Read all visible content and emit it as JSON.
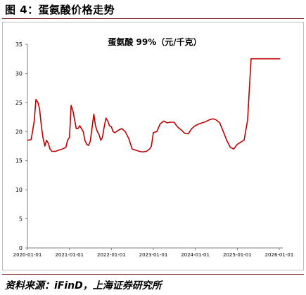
{
  "figure_title": "图 4：蛋氨酸价格走势",
  "source_note": "资料来源：iFinD，上海证券研究所",
  "chart_data": {
    "type": "line",
    "title": "蛋氨酸 99%（元/千克）",
    "xlabel": "",
    "ylabel": "",
    "ylim": [
      0,
      35
    ],
    "yticks": [
      0,
      5,
      10,
      15,
      20,
      25,
      30,
      35
    ],
    "xlim": [
      "2020-01-01",
      "2026-02-01"
    ],
    "xticks": [
      "2020-01-01",
      "2021-01-01",
      "2022-01-01",
      "2023-01-01",
      "2024-01-01",
      "2025-01-01",
      "2026-01-01"
    ],
    "grid": false,
    "legend": "none",
    "line_color": "#c00000",
    "series": [
      {
        "x": [
          "2020-01-01",
          "2020-02-01",
          "2020-02-15",
          "2020-03-01",
          "2020-03-15",
          "2020-04-01",
          "2020-04-15",
          "2020-05-01",
          "2020-05-15",
          "2020-06-01",
          "2020-06-15",
          "2020-07-01",
          "2020-07-15",
          "2020-08-01",
          "2020-09-01",
          "2020-10-01",
          "2020-11-01",
          "2020-12-01",
          "2020-12-15",
          "2021-01-01",
          "2021-01-15",
          "2021-02-01",
          "2021-02-15",
          "2021-03-01",
          "2021-03-15",
          "2021-04-01",
          "2021-04-15",
          "2021-05-01",
          "2021-05-15",
          "2021-06-01",
          "2021-06-15",
          "2021-07-01",
          "2021-08-01",
          "2021-08-15",
          "2021-09-01",
          "2021-09-15",
          "2021-10-01",
          "2021-10-15",
          "2021-11-01",
          "2021-11-15",
          "2021-12-01",
          "2021-12-15",
          "2022-01-01",
          "2022-01-15",
          "2022-02-01",
          "2022-03-01",
          "2022-04-01",
          "2022-05-01",
          "2022-06-01",
          "2022-07-01",
          "2022-08-01",
          "2022-09-01",
          "2022-10-01",
          "2022-11-01",
          "2022-12-01",
          "2022-12-15",
          "2023-01-01",
          "2023-02-01",
          "2023-03-01",
          "2023-04-01",
          "2023-05-01",
          "2023-06-01",
          "2023-07-01",
          "2023-07-15",
          "2023-08-01",
          "2023-08-15",
          "2023-09-01",
          "2023-10-01",
          "2023-11-01",
          "2023-12-01",
          "2024-01-01",
          "2024-02-01",
          "2024-03-01",
          "2024-04-01",
          "2024-05-01",
          "2024-06-01",
          "2024-07-01",
          "2024-08-01",
          "2024-09-01",
          "2024-10-01",
          "2024-11-01",
          "2024-12-01",
          "2025-01-01",
          "2025-02-01",
          "2025-03-01",
          "2025-04-01",
          "2025-05-01",
          "2025-06-01",
          "2025-07-01",
          "2025-08-01",
          "2025-09-01",
          "2025-10-01",
          "2025-11-01",
          "2025-12-01",
          "2025-12-15",
          "2026-01-01",
          "2026-01-05",
          "2026-01-10"
        ],
        "y": [
          18.5,
          18.6,
          20,
          22,
          25.5,
          25,
          24,
          21,
          19,
          17.5,
          18.5,
          18,
          17,
          16.6,
          16.6,
          16.8,
          17,
          17.3,
          18.5,
          19,
          24.5,
          23.5,
          22,
          20.5,
          20.5,
          21,
          20.5,
          20,
          18.5,
          17.8,
          17.6,
          18.3,
          23,
          21,
          20,
          19.5,
          18.5,
          19,
          21,
          22.3,
          21.8,
          21,
          20.8,
          20,
          19.8,
          20.2,
          20.5,
          20,
          18.8,
          17,
          16.8,
          16.6,
          16.5,
          16.6,
          17,
          17.5,
          19.8,
          20,
          21.3,
          21.8,
          21.5,
          21.6,
          21.6,
          21.2,
          20.8,
          20.5,
          20.3,
          19.7,
          19.6,
          20.5,
          21,
          21.3,
          21.5,
          21.7,
          22,
          22.2,
          22,
          21.5,
          20,
          18.5,
          17.3,
          17,
          17.8,
          18.2,
          18.5,
          22,
          32.5,
          32.5,
          32.5,
          32.5,
          32.5,
          32.5,
          32.5,
          32.5,
          32.5,
          32.5,
          32.5,
          32.5
        ]
      }
    ]
  }
}
